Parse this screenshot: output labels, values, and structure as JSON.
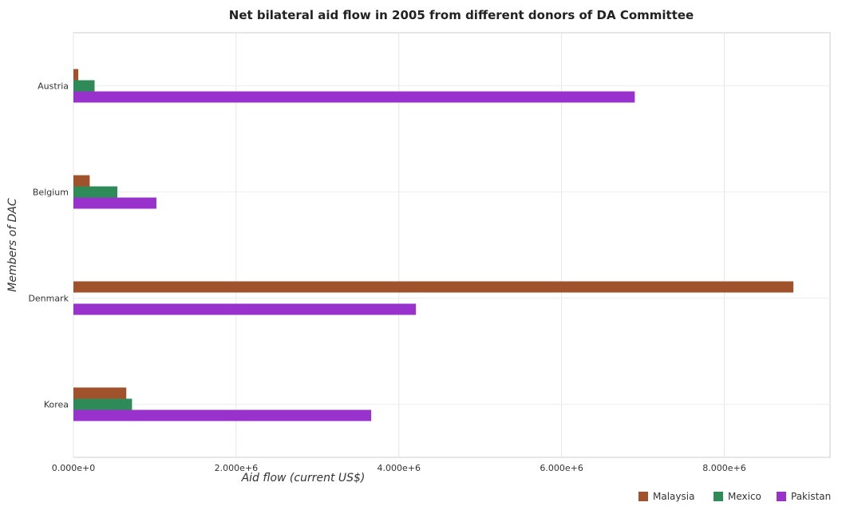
{
  "chart_data": {
    "type": "bar",
    "orientation": "horizontal",
    "title": "Net bilateral aid flow in 2005 from different donors of DA Committee",
    "xlabel": "Aid flow (current US$)",
    "ylabel": "Members of DAC",
    "categories": [
      "Austria",
      "Belgium",
      "Denmark",
      "Korea"
    ],
    "x_ticks": [
      "0.000e+0",
      "2.000e+6",
      "4.000e+6",
      "6.000e+6",
      "8.000e+6"
    ],
    "xlim": [
      0,
      9300000
    ],
    "grid": true,
    "legend_position": "bottom-right",
    "series": [
      {
        "name": "Malaysia",
        "color": "#a0522d",
        "values": [
          60000,
          200000,
          8850000,
          650000
        ]
      },
      {
        "name": "Mexico",
        "color": "#2e8b57",
        "values": [
          260000,
          540000,
          0,
          720000
        ]
      },
      {
        "name": "Pakistan",
        "color": "#9932cc",
        "values": [
          6900000,
          1020000,
          4210000,
          3660000
        ]
      }
    ]
  }
}
